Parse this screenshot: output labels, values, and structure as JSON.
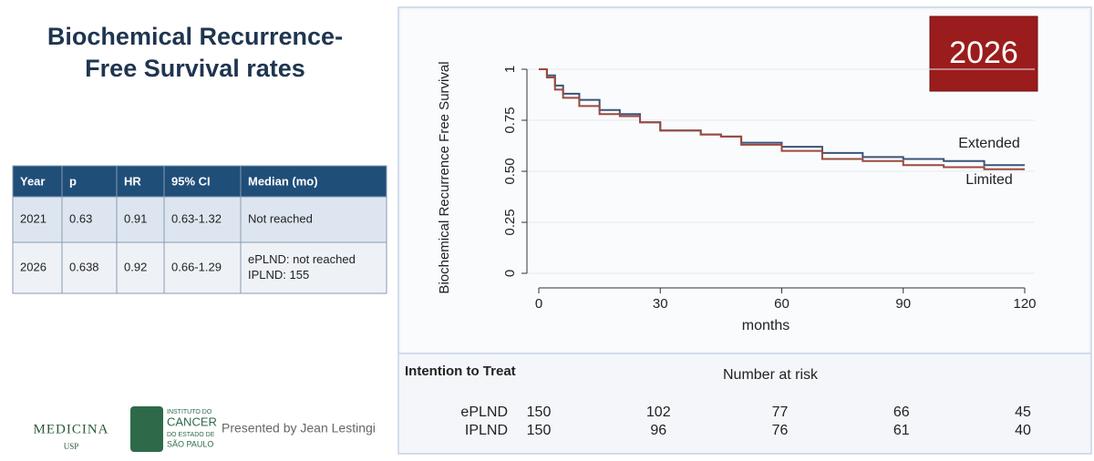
{
  "slide_title": [
    "Biochemical Recurrence-",
    "Free Survival rates"
  ],
  "table": {
    "header": [
      "Year",
      "p",
      "HR",
      "95% CI",
      "Median (mo)"
    ],
    "rows": [
      [
        "2021",
        "0.63",
        "0.91",
        "0.63-1.32",
        [
          "Not reached"
        ]
      ],
      [
        "2026",
        "0.638",
        "0.92",
        "0.66-1.29",
        [
          "ePLND: not reached",
          "IPLND: 155"
        ]
      ]
    ]
  },
  "footer": {
    "logo1": "MEDICINA",
    "logo1_sub": "USP",
    "logo2": [
      "INSTITUTO DO",
      "CANCER",
      "DO ESTADO DE",
      "SÃO PAULO"
    ],
    "presenter": "Presented by Jean Lestingi"
  },
  "badge": "2026",
  "chart_data": {
    "type": "step",
    "x_label": "months",
    "y_label": "Biochemical Recurrence Free Survival",
    "x": [
      0,
      2,
      4,
      6,
      10,
      15,
      20,
      25,
      30,
      40,
      45,
      50,
      60,
      70,
      80,
      90,
      100,
      110,
      120
    ],
    "series": [
      {
        "name": "Extended",
        "color": "#3b5478",
        "values": [
          1,
          0.97,
          0.92,
          0.88,
          0.85,
          0.8,
          0.78,
          0.74,
          0.7,
          0.68,
          0.67,
          0.64,
          0.62,
          0.59,
          0.57,
          0.56,
          0.55,
          0.53,
          0.53
        ]
      },
      {
        "name": "Limited",
        "color": "#9a4a3e",
        "values": [
          1,
          0.96,
          0.9,
          0.86,
          0.82,
          0.78,
          0.77,
          0.74,
          0.7,
          0.68,
          0.67,
          0.63,
          0.6,
          0.56,
          0.55,
          0.53,
          0.52,
          0.51,
          0.51
        ]
      }
    ],
    "xlim": [
      0,
      120
    ],
    "xticks": [
      0,
      30,
      60,
      90,
      120
    ],
    "ylim": [
      0,
      1
    ],
    "yticks": [
      0,
      0.25,
      {
        "value": 0.5,
        "label": "0.50"
      },
      0.75,
      1
    ],
    "grid": true
  },
  "risk_table": {
    "title": "Intention to Treat",
    "subtitle": "Number at risk",
    "rows": [
      {
        "label": "ePLND",
        "values": [
          150,
          102,
          77,
          66,
          45
        ]
      },
      {
        "label": "IPLND",
        "values": [
          150,
          96,
          76,
          61,
          40
        ]
      }
    ]
  }
}
